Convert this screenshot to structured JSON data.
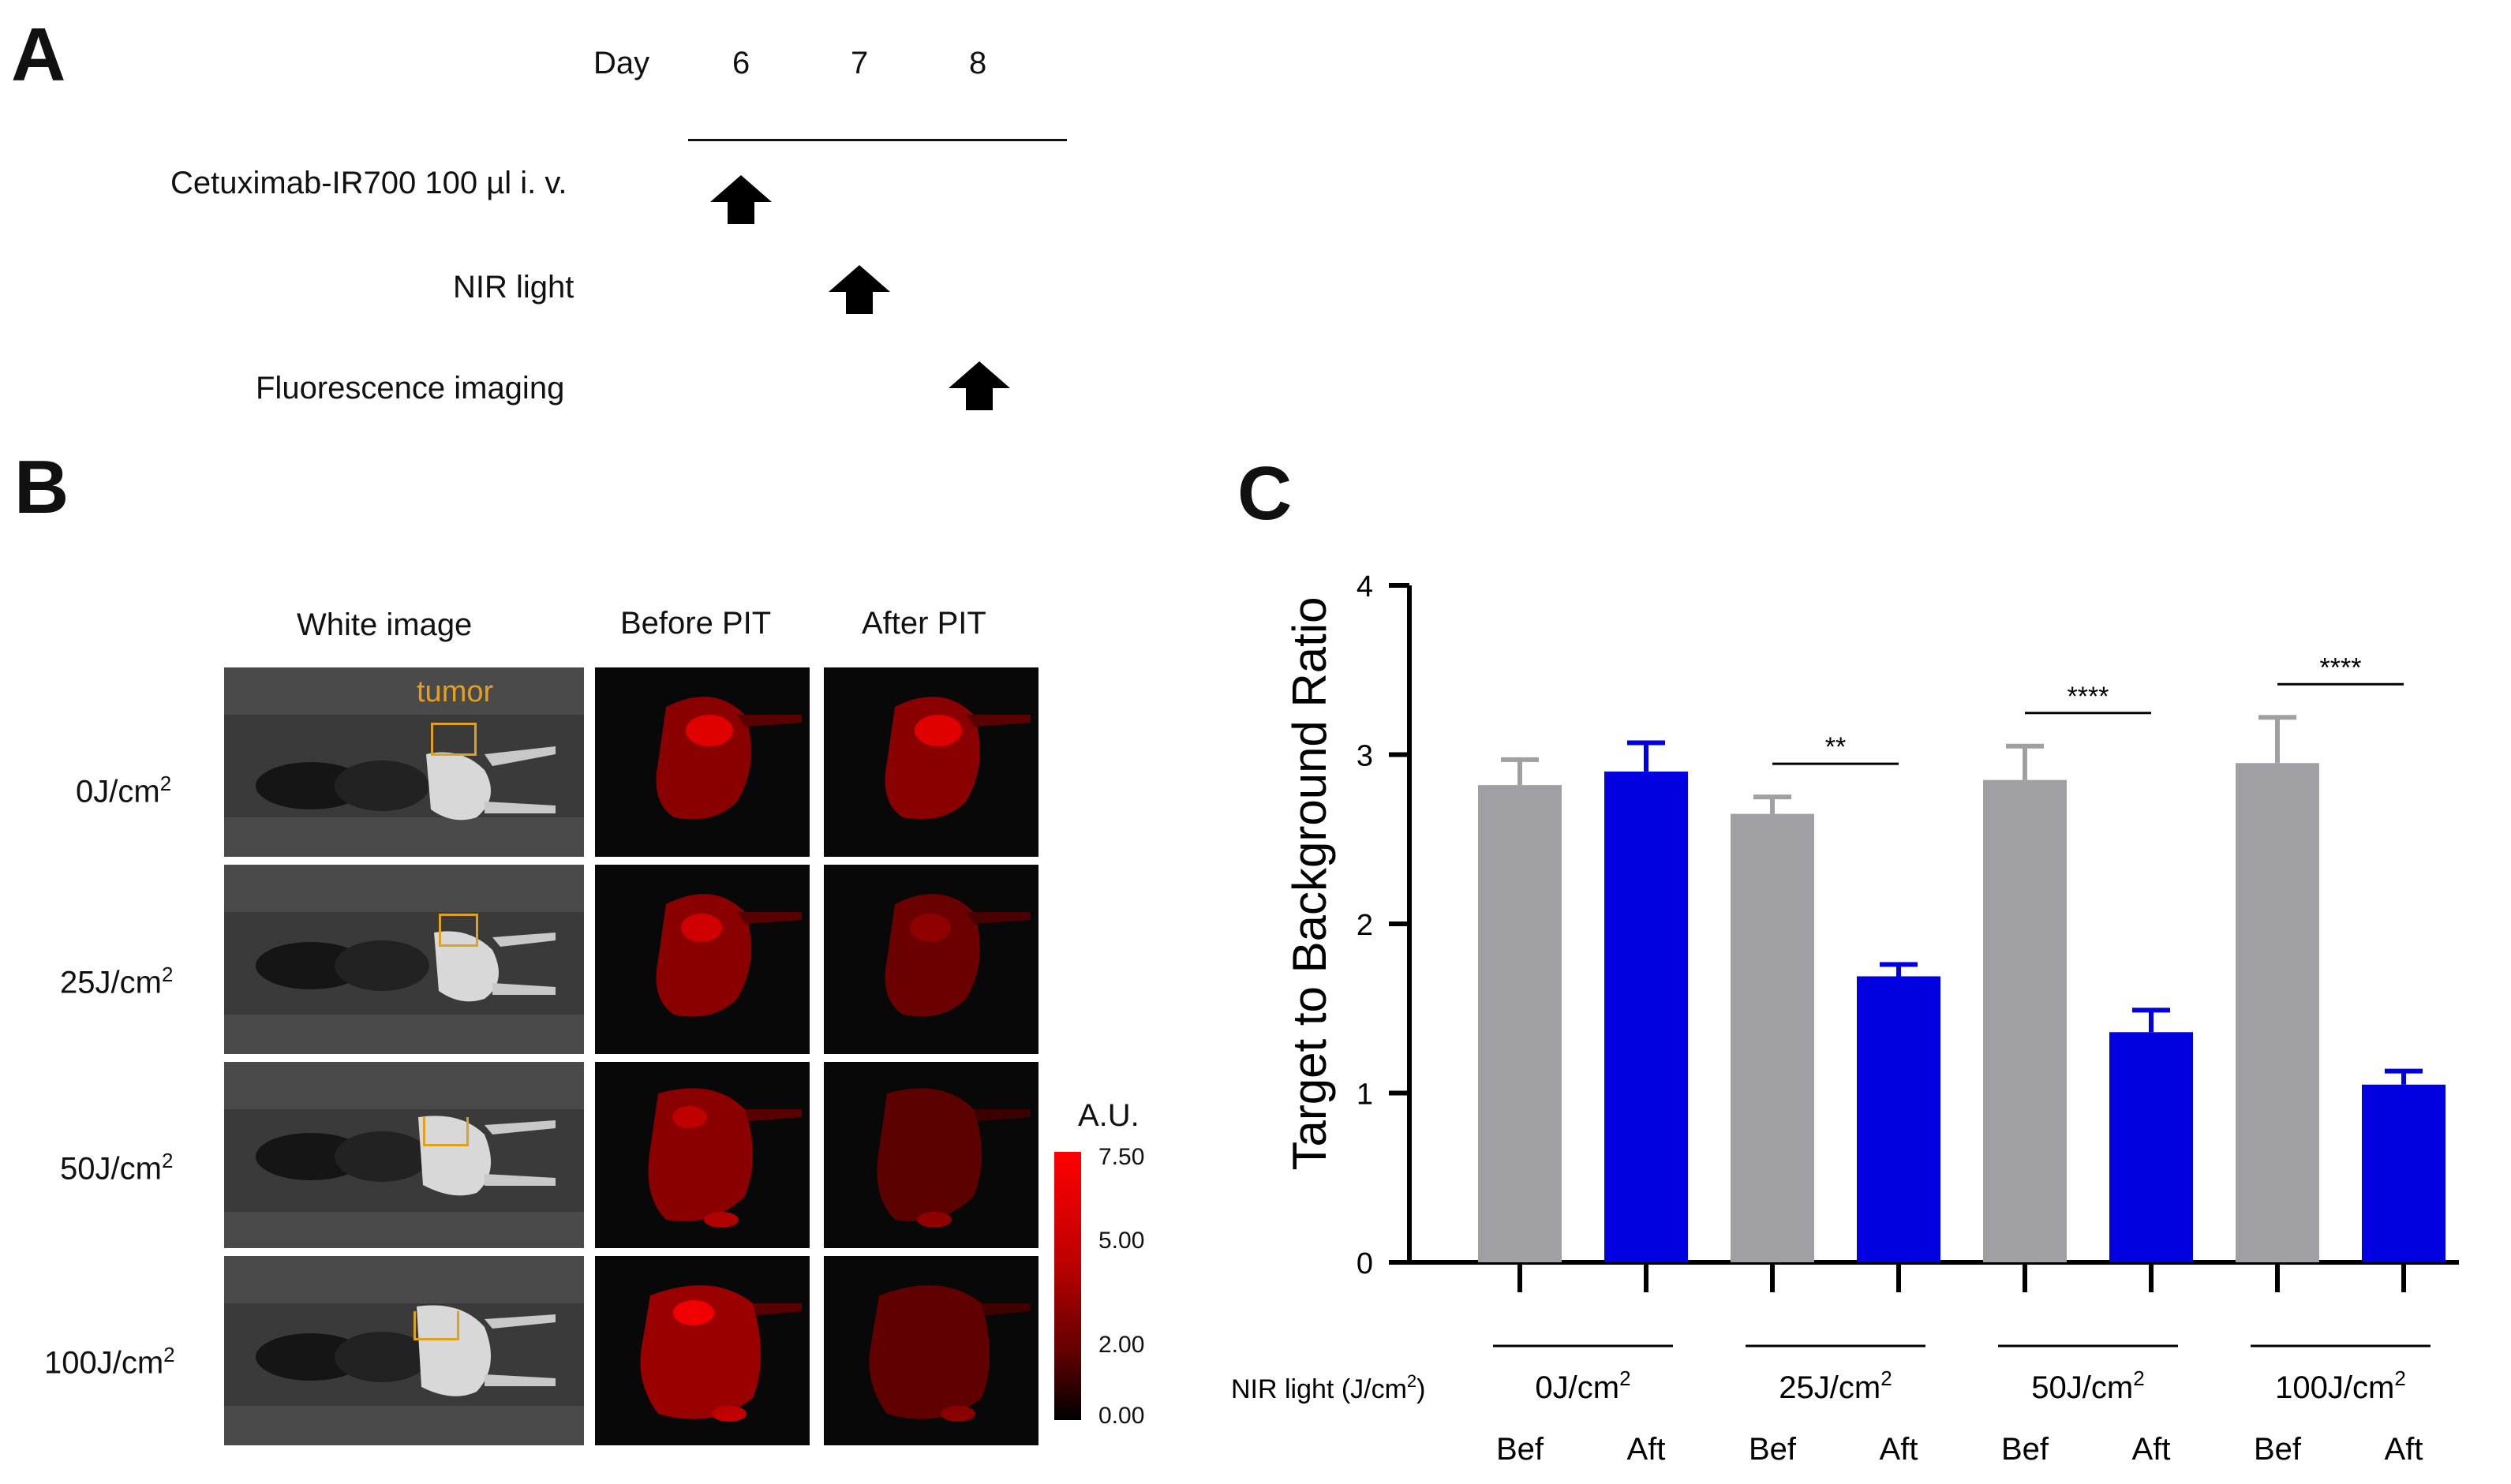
{
  "panels": {
    "a": "A",
    "b": "B",
    "c": "C"
  },
  "timeline": {
    "day_label": "Day",
    "days": [
      "6",
      "7",
      "8"
    ],
    "events": [
      {
        "label": "Cetuximab-IR700 100 µl i. v.",
        "day": "6"
      },
      {
        "label": "NIR light",
        "day": "7"
      },
      {
        "label": "Fluorescence imaging",
        "day": "8"
      }
    ]
  },
  "images": {
    "columns": [
      "White  image",
      "Before PIT",
      "After PIT"
    ],
    "tumor_label": "tumor",
    "rows": [
      {
        "dose": "0J/cm",
        "sup": "2"
      },
      {
        "dose": "25J/cm",
        "sup": "2"
      },
      {
        "dose": "50J/cm",
        "sup": "2"
      },
      {
        "dose": "100J/cm",
        "sup": "2"
      }
    ],
    "scale": {
      "title": "A.U.",
      "ticks": [
        "7.50",
        "5.00",
        "2.00",
        "0.00"
      ]
    }
  },
  "chart_data": {
    "type": "bar",
    "ylabel": "Target to Background Ratio",
    "xlabel": "NIR light (J/cm",
    "xlabel_sup": "2",
    "xlabel_end": ")",
    "ylim": [
      0,
      4
    ],
    "yticks": [
      "0",
      "1",
      "2",
      "3",
      "4"
    ],
    "groups": [
      {
        "label": "0J/cm",
        "sup": "2",
        "significance": ""
      },
      {
        "label": "25J/cm",
        "sup": "2",
        "significance": "**"
      },
      {
        "label": "50J/cm",
        "sup": "2",
        "significance": "****"
      },
      {
        "label": "100J/cm",
        "sup": "2",
        "significance": "****"
      }
    ],
    "sublabels": [
      "Bef",
      "Aft"
    ],
    "series": [
      {
        "name": "Bef",
        "color": "#a0a0a4",
        "values": [
          2.82,
          2.65,
          2.85,
          2.95
        ],
        "errors": [
          0.15,
          0.1,
          0.2,
          0.27
        ]
      },
      {
        "name": "Aft",
        "color": "#0000e0",
        "values": [
          2.9,
          1.69,
          1.36,
          1.05
        ],
        "errors": [
          0.17,
          0.07,
          0.13,
          0.08
        ]
      }
    ]
  }
}
